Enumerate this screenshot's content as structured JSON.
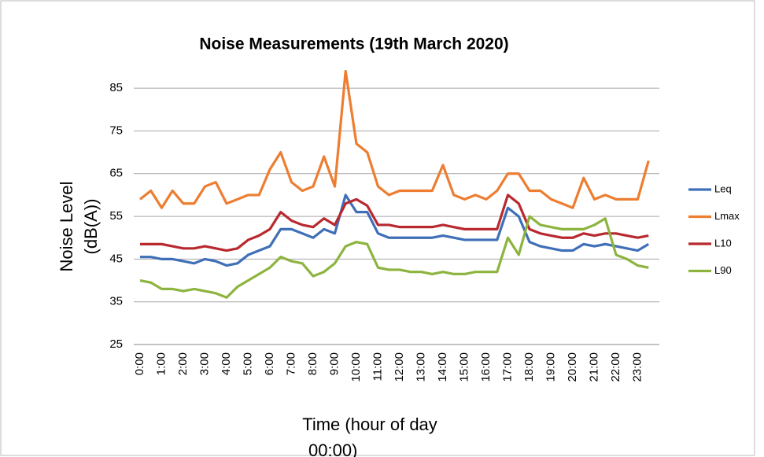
{
  "chart_data": {
    "type": "line",
    "title": "Noise Measurements (19th March 2020)",
    "x_label": [
      "Time (hour of day",
      "00:00)"
    ],
    "y_label": [
      "Noise Level",
      "(dB(A))"
    ],
    "categories": [
      "0:00",
      null,
      "1:00",
      null,
      "2:00",
      null,
      "3:00",
      null,
      "4:00",
      null,
      "5:00",
      null,
      "6:00",
      null,
      "7:00",
      null,
      "8:00",
      null,
      "9:00",
      null,
      "10:00",
      null,
      "11:00",
      null,
      "12:00",
      null,
      "13:00",
      null,
      "14:00",
      null,
      "15:00",
      null,
      "16:00",
      null,
      "17:00",
      null,
      "18:00",
      null,
      "19:00",
      null,
      "20:00",
      null,
      "21:00",
      null,
      "22:00",
      null,
      "23:00",
      null
    ],
    "series": [
      {
        "name": "Leq",
        "color": "#3f6fb8",
        "values": [
          45.5,
          45.5,
          45,
          45,
          44.5,
          44,
          45,
          44.5,
          43.5,
          44,
          46,
          47,
          48,
          52,
          52,
          51,
          50,
          52,
          51,
          60,
          56,
          56,
          51,
          50,
          50,
          50,
          50,
          50,
          50.5,
          50,
          49.5,
          49.5,
          49.5,
          49.5,
          57,
          55,
          49,
          48,
          47.5,
          47,
          47,
          48.5,
          48,
          48.5,
          48,
          47.5,
          47,
          48.5
        ]
      },
      {
        "name": "Lmax",
        "color": "#ed7d31",
        "values": [
          59,
          61,
          57,
          61,
          58,
          58,
          62,
          63,
          58,
          59,
          60,
          60,
          66,
          70,
          63,
          61,
          62,
          69,
          62,
          89,
          72,
          70,
          62,
          60,
          61,
          61,
          61,
          61,
          67,
          60,
          59,
          60,
          59,
          61,
          65,
          65,
          61,
          61,
          59,
          58,
          57,
          64,
          59,
          60,
          59,
          59,
          59,
          68
        ]
      },
      {
        "name": "L10",
        "color": "#b8292f",
        "values": [
          48.5,
          48.5,
          48.5,
          48,
          47.5,
          47.5,
          48,
          47.5,
          47,
          47.5,
          49.5,
          50.5,
          52,
          56,
          54,
          53,
          52.5,
          54.5,
          53,
          58,
          59,
          57.5,
          53,
          53,
          52.5,
          52.5,
          52.5,
          52.5,
          53,
          52.5,
          52,
          52,
          52,
          52,
          60,
          58,
          52,
          51,
          50.5,
          50,
          50,
          51,
          50.5,
          51,
          51,
          50.5,
          50,
          50.5
        ]
      },
      {
        "name": "L90",
        "color": "#8db43f",
        "values": [
          40,
          39.5,
          38,
          38,
          37.5,
          38,
          37.5,
          37,
          36,
          38.5,
          40,
          41.5,
          43,
          45.5,
          44.5,
          44,
          41,
          42,
          44,
          48,
          49,
          48.5,
          43,
          42.5,
          42.5,
          42,
          42,
          41.5,
          42,
          41.5,
          41.5,
          42,
          42,
          42,
          50,
          46,
          55,
          53,
          52.5,
          52,
          52,
          52,
          53,
          54.5,
          46,
          45,
          43.5,
          43
        ]
      }
    ],
    "ylim": [
      25,
      90
    ],
    "yticks": [
      25,
      35,
      45,
      55,
      65,
      75,
      85
    ],
    "grid": true,
    "legend": "right"
  }
}
